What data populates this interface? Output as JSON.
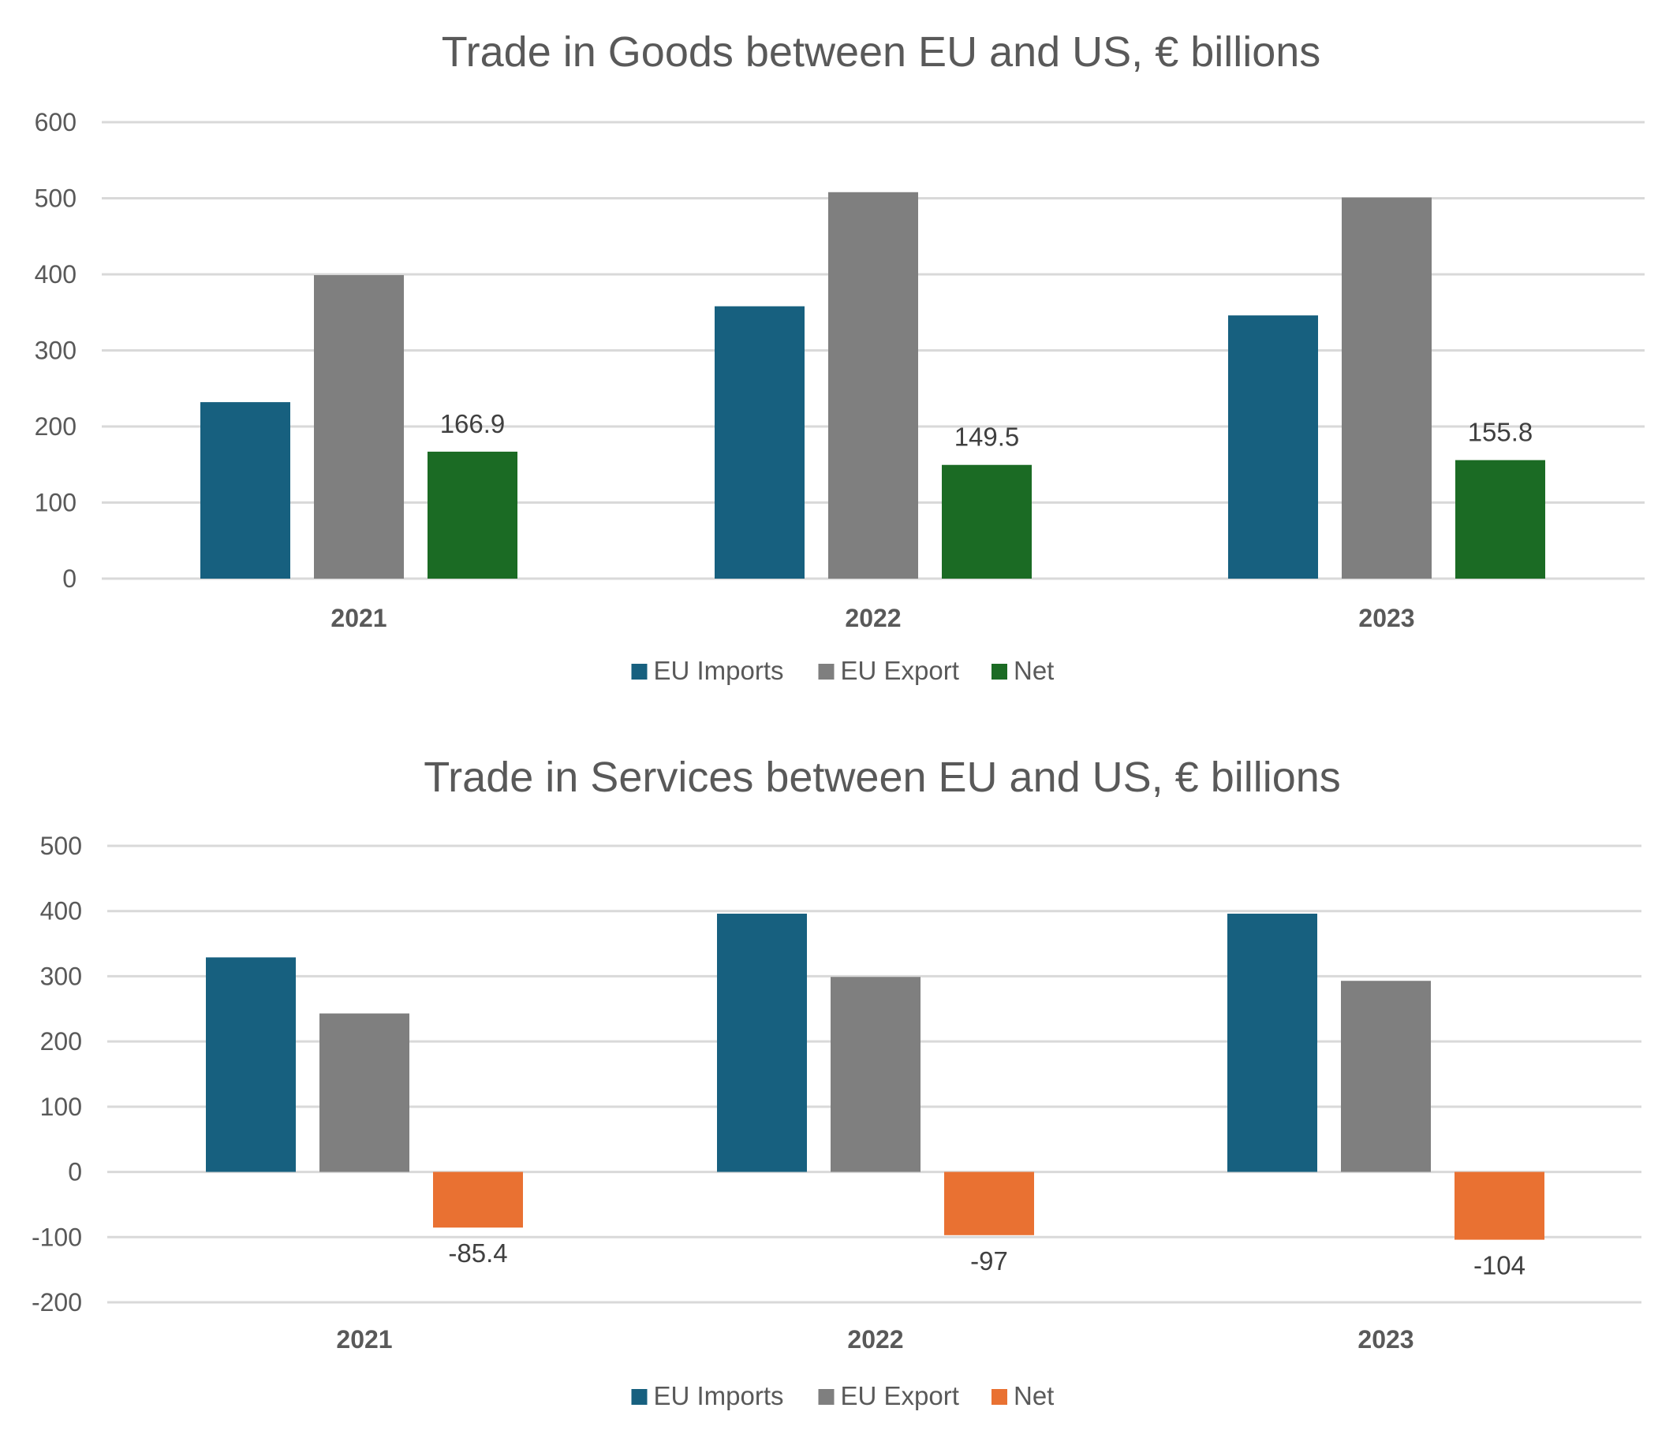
{
  "chart_data": [
    {
      "type": "bar",
      "title": "Trade in Goods between EU and US, € billions",
      "categories": [
        "2021",
        "2022",
        "2023"
      ],
      "ylim": [
        0,
        600
      ],
      "yticks": [
        0,
        100,
        200,
        300,
        400,
        500,
        600
      ],
      "grid": true,
      "legend_position": "bottom",
      "series": [
        {
          "name": "EU Imports",
          "color": "#17607f",
          "values": [
            232,
            358,
            346
          ]
        },
        {
          "name": "EU Export",
          "color": "#7f7f7f",
          "values": [
            399,
            508,
            501
          ]
        },
        {
          "name": "Net",
          "color": "#1b6b24",
          "values": [
            166.9,
            149.5,
            155.8
          ],
          "labels": [
            "166.9",
            "149.5",
            "155.8"
          ]
        }
      ]
    },
    {
      "type": "bar",
      "title": "Trade in Services between EU and US, € billions",
      "categories": [
        "2021",
        "2022",
        "2023"
      ],
      "ylim": [
        -200,
        500
      ],
      "yticks": [
        -200,
        -100,
        0,
        100,
        200,
        300,
        400,
        500
      ],
      "grid": true,
      "legend_position": "bottom",
      "series": [
        {
          "name": "EU Imports",
          "color": "#17607f",
          "values": [
            329,
            396,
            396
          ]
        },
        {
          "name": "EU Export",
          "color": "#7f7f7f",
          "values": [
            243,
            299,
            293
          ]
        },
        {
          "name": "Net",
          "color": "#e97132",
          "values": [
            -85.4,
            -97,
            -104
          ],
          "labels": [
            "-85.4",
            "-97",
            "-104"
          ]
        }
      ]
    }
  ]
}
